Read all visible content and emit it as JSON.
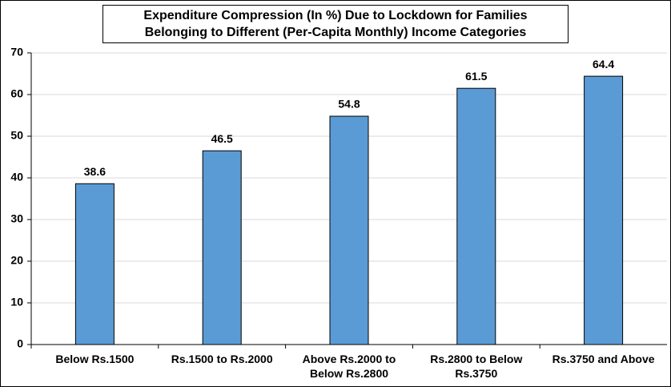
{
  "chart_data": {
    "type": "bar",
    "title": [
      "Expenditure Compression (In %) Due to Lockdown for Families",
      "Belonging to Different (Per-Capita Monthly) Income Categories"
    ],
    "categories": [
      "Below Rs.1500",
      "Rs.1500 to Rs.2000",
      "Above Rs.2000 to Below Rs.2800",
      "Rs.2800 to Below Rs.3750",
      "Rs.3750 and Above"
    ],
    "values": [
      38.6,
      46.5,
      54.8,
      61.5,
      64.4
    ],
    "color": "#5b9bd5",
    "ylim": [
      0,
      70
    ],
    "yticks": [
      0,
      10,
      20,
      30,
      40,
      50,
      60,
      70
    ],
    "grid": true
  }
}
